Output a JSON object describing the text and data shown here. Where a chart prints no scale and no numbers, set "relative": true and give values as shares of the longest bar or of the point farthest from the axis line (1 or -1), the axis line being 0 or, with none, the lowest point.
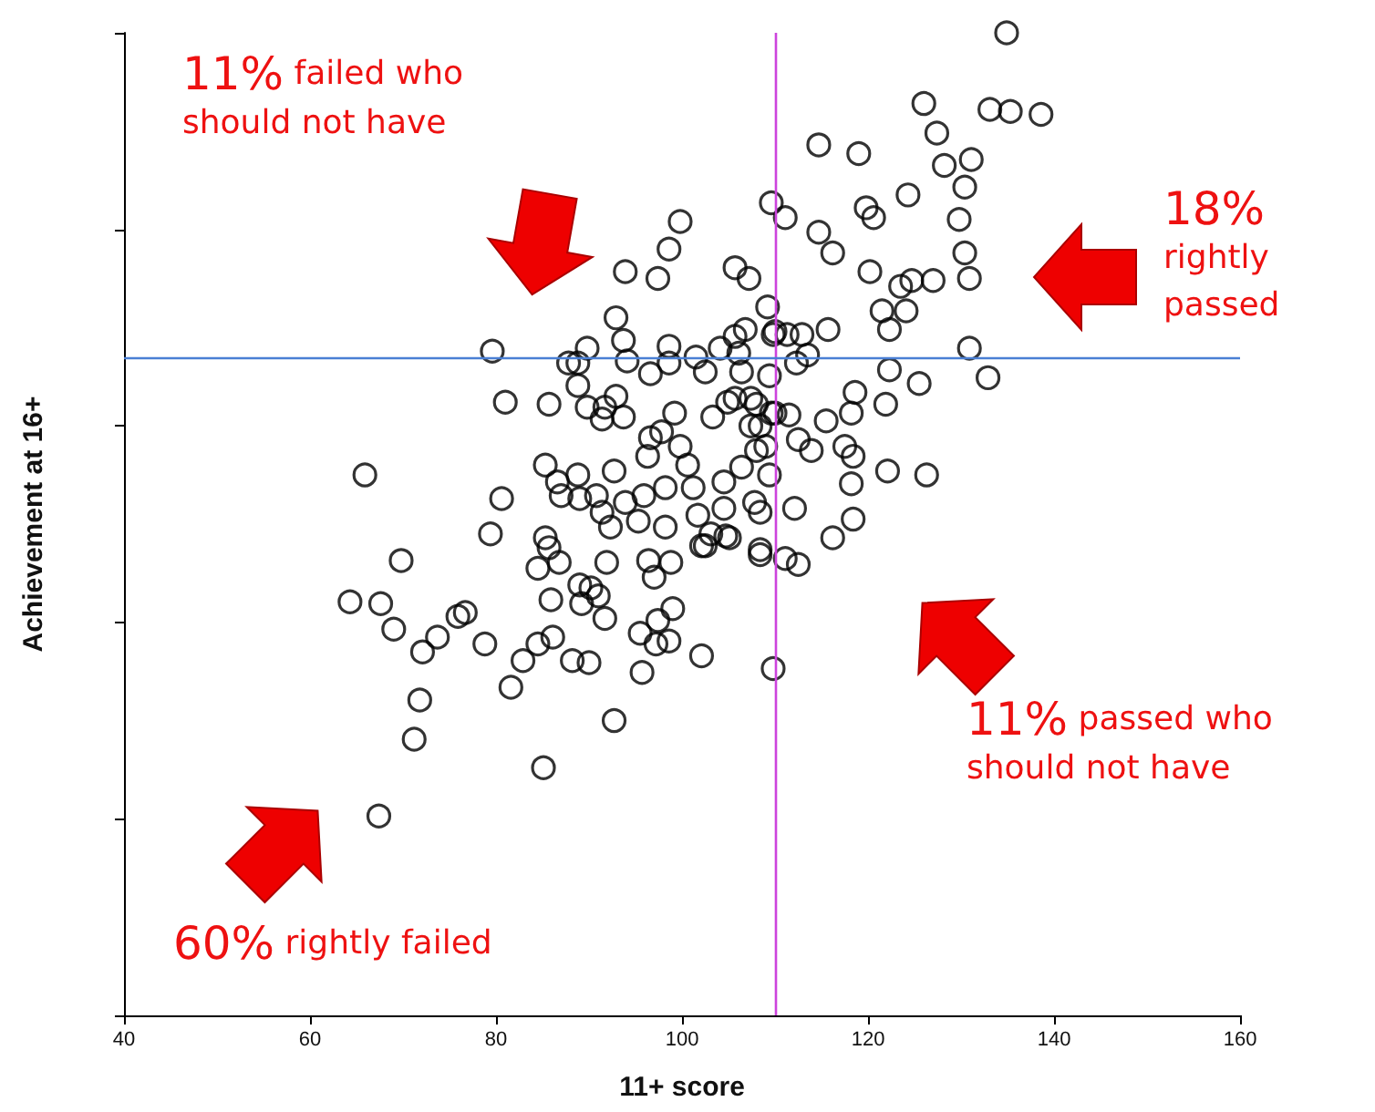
{
  "chart_data": {
    "type": "scatter",
    "xlabel": "11+ score",
    "ylabel": "Achievement at 16+",
    "relative": true,
    "marker": "circle",
    "tick_labels": "x",
    "xlim": [
      40,
      160
    ],
    "xticks": [
      40,
      60,
      80,
      100,
      120,
      140,
      160
    ],
    "ref_lines": [
      {
        "axis": "x",
        "value": 110,
        "color": "#cc44dd"
      },
      {
        "axis": "y",
        "value": 0.668,
        "color": "#4a7fd4"
      }
    ],
    "annotations": [
      "11% failed who should not have",
      "18% rightly passed",
      "11% passed who should not have",
      "60% rightly failed"
    ],
    "series": [
      {
        "color": "#000000",
        "x": [
          134.9,
          126.0,
          133.1,
          135.3,
          138.6,
          114.7,
          119.0,
          127.4,
          128.2,
          131.1,
          130.4,
          124.3,
          119.8,
          120.6,
          109.6,
          111.1,
          114.7,
          116.2,
          129.8,
          130.4,
          130.9,
          120.2,
          127.0,
          124.7,
          123.5,
          121.5,
          124.1,
          122.3,
          109.2,
          115.7,
          130.9,
          122.3,
          125.5,
          132.9,
          118.6,
          121.9,
          105.7,
          107.2,
          112.9,
          111.3,
          109.8,
          113.5,
          112.3,
          99.8,
          98.6,
          93.9,
          97.4,
          92.9,
          93.7,
          89.8,
          79.6,
          98.6,
          87.8,
          88.8,
          94.1,
          96.6,
          98.6,
          101.5,
          102.5,
          104.1,
          105.7,
          106.8,
          106.1,
          106.4,
          109.4,
          110.0,
          81.0,
          85.7,
          88.8,
          89.8,
          91.7,
          92.9,
          93.7,
          91.4,
          99.2,
          103.3,
          104.9,
          107.4,
          109.6,
          108.4,
          96.6,
          97.8,
          99.8,
          96.3,
          100.6,
          101.2,
          98.2,
          95.9,
          93.9,
          92.7,
          90.8,
          88.8,
          86.6,
          85.3,
          91.4,
          92.3,
          95.3,
          98.2,
          101.7,
          104.5,
          106.4,
          108.0,
          107.8,
          108.4,
          104.5,
          103.1,
          102.1,
          105.1,
          108.4,
          80.6,
          79.4,
          65.9,
          85.3,
          69.8,
          87.0,
          89.0,
          64.3,
          67.6,
          69.0,
          72.1,
          73.7,
          75.9,
          76.7,
          78.8,
          71.8,
          71.2,
          67.4,
          81.6,
          82.9,
          84.5,
          86.1,
          85.1,
          88.2,
          90.0,
          92.7,
          95.7,
          95.5,
          97.2,
          98.6,
          97.4,
          99.0,
          102.1,
          109.8,
          85.9,
          89.0,
          90.2,
          89.2,
          91.7,
          91.0,
          84.5,
          85.7,
          86.8,
          91.9,
          96.4,
          97.0,
          98.8,
          102.5,
          104.7,
          108.4,
          118.2,
          115.5,
          113.9,
          112.5,
          117.5,
          118.4,
          118.2,
          122.1,
          126.3,
          118.4,
          116.2,
          112.1,
          111.1,
          112.5,
          109.4,
          109.0,
          107.4,
          110.0,
          111.5,
          105.7,
          108.0
        ],
        "values": [
          1.0,
          0.928,
          0.922,
          0.92,
          0.917,
          0.886,
          0.877,
          0.898,
          0.865,
          0.871,
          0.843,
          0.835,
          0.822,
          0.812,
          0.827,
          0.812,
          0.797,
          0.776,
          0.81,
          0.776,
          0.75,
          0.757,
          0.748,
          0.748,
          0.742,
          0.717,
          0.717,
          0.698,
          0.721,
          0.698,
          0.679,
          0.657,
          0.643,
          0.649,
          0.634,
          0.622,
          0.761,
          0.75,
          0.693,
          0.693,
          0.693,
          0.672,
          0.664,
          0.808,
          0.78,
          0.757,
          0.75,
          0.71,
          0.687,
          0.679,
          0.676,
          0.681,
          0.664,
          0.664,
          0.666,
          0.653,
          0.664,
          0.67,
          0.655,
          0.679,
          0.691,
          0.698,
          0.674,
          0.655,
          0.651,
          0.696,
          0.624,
          0.622,
          0.641,
          0.619,
          0.619,
          0.63,
          0.609,
          0.607,
          0.613,
          0.609,
          0.624,
          0.628,
          0.613,
          0.6,
          0.588,
          0.594,
          0.579,
          0.569,
          0.56,
          0.537,
          0.537,
          0.529,
          0.522,
          0.554,
          0.529,
          0.55,
          0.543,
          0.56,
          0.512,
          0.497,
          0.503,
          0.497,
          0.509,
          0.516,
          0.558,
          0.575,
          0.522,
          0.512,
          0.543,
          0.49,
          0.478,
          0.486,
          0.474,
          0.526,
          0.49,
          0.55,
          0.486,
          0.463,
          0.529,
          0.526,
          0.421,
          0.419,
          0.393,
          0.37,
          0.385,
          0.406,
          0.41,
          0.378,
          0.321,
          0.281,
          0.203,
          0.334,
          0.361,
          0.378,
          0.385,
          0.252,
          0.361,
          0.359,
          0.3,
          0.349,
          0.389,
          0.378,
          0.381,
          0.402,
          0.414,
          0.366,
          0.353,
          0.423,
          0.438,
          0.435,
          0.419,
          0.404,
          0.427,
          0.455,
          0.476,
          0.461,
          0.461,
          0.463,
          0.446,
          0.461,
          0.478,
          0.488,
          0.469,
          0.613,
          0.605,
          0.575,
          0.586,
          0.579,
          0.569,
          0.541,
          0.554,
          0.55,
          0.505,
          0.486,
          0.516,
          0.465,
          0.459,
          0.55,
          0.579,
          0.6,
          0.613,
          0.611,
          0.628,
          0.622
        ]
      }
    ]
  }
}
